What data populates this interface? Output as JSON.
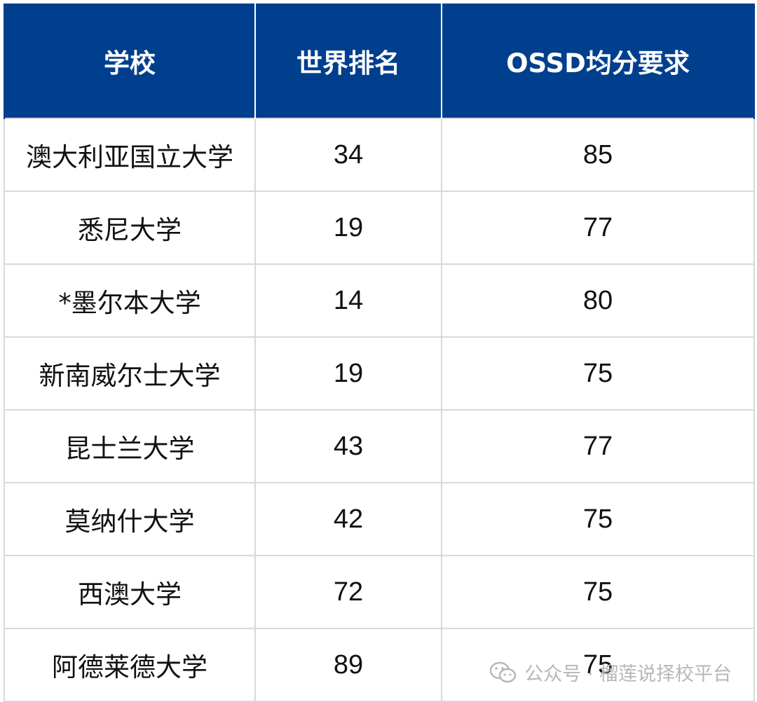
{
  "table": {
    "headers": [
      "学校",
      "世界排名",
      "OSSD均分要求"
    ],
    "rows": [
      [
        "澳大利亚国立大学",
        "34",
        "85"
      ],
      [
        "悉尼大学",
        "19",
        "77"
      ],
      [
        "*墨尔本大学",
        "14",
        "80"
      ],
      [
        "新南威尔士大学",
        "19",
        "75"
      ],
      [
        "昆士兰大学",
        "43",
        "77"
      ],
      [
        "莫纳什大学",
        "42",
        "75"
      ],
      [
        "西澳大学",
        "72",
        "75"
      ],
      [
        "阿德莱德大学",
        "89",
        "75"
      ]
    ]
  },
  "watermark": {
    "icon": "wechat-icon",
    "text": "公众号 · 榴莲说择校平台"
  },
  "colors": {
    "header_bg": "#003f8e",
    "header_text": "#ffffff",
    "grid": "#d9d9d9",
    "watermark": "#b7b7b7"
  }
}
